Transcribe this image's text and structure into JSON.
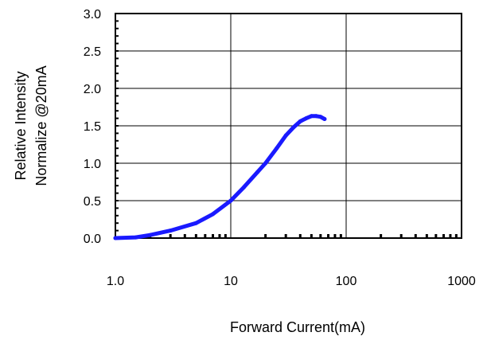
{
  "chart_data": {
    "type": "line",
    "title": "",
    "xlabel": "Forward Current(mA)",
    "ylabel": [
      "Relative Intensity",
      "Normalize @20mA"
    ],
    "x_scale": "log",
    "xlim": [
      1,
      1000
    ],
    "ylim": [
      0,
      3
    ],
    "x_ticks": [
      1,
      10,
      100,
      1000
    ],
    "x_tick_labels": [
      "1.0",
      "10",
      "100",
      "1000"
    ],
    "y_ticks": [
      0,
      0.5,
      1,
      1.5,
      2,
      2.5,
      3
    ],
    "y_tick_labels": [
      "0.0",
      "0.5",
      "1.0",
      "1.5",
      "2.0",
      "2.5",
      "3.0"
    ],
    "grid": true,
    "series": [
      {
        "color": "#1a1aff",
        "x": [
          1,
          1.5,
          2,
          3,
          5,
          7,
          10,
          13,
          17,
          20,
          25,
          30,
          35,
          40,
          45,
          50,
          55,
          60,
          65
        ],
        "y": [
          0.0,
          0.01,
          0.04,
          0.1,
          0.2,
          0.32,
          0.5,
          0.68,
          0.88,
          1.0,
          1.2,
          1.37,
          1.48,
          1.56,
          1.6,
          1.63,
          1.63,
          1.62,
          1.59
        ]
      }
    ]
  }
}
